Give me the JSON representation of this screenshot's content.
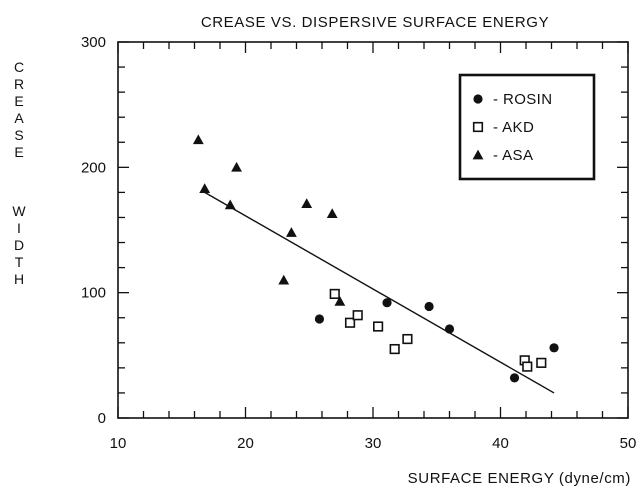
{
  "chart_data": {
    "type": "scatter",
    "title": "CREASE VS. DISPERSIVE SURFACE ENERGY",
    "xlabel": "SURFACE ENERGY (dyne/cm)",
    "ylabel": "CREASE WIDTH",
    "xlim": [
      10,
      50
    ],
    "ylim": [
      0,
      300
    ],
    "x_ticks": [
      "10",
      "20",
      "30",
      "40",
      "50"
    ],
    "y_ticks": [
      "0",
      "100",
      "200",
      "300"
    ],
    "grid": false,
    "legend_position": "top-right",
    "series": [
      {
        "name": "ROSIN",
        "marker": "filled-circle",
        "points": [
          [
            25.8,
            79
          ],
          [
            31.1,
            92
          ],
          [
            34.4,
            89
          ],
          [
            36.0,
            71
          ],
          [
            41.1,
            32
          ],
          [
            44.2,
            56
          ]
        ]
      },
      {
        "name": "AKD",
        "marker": "open-square",
        "points": [
          [
            27.0,
            99
          ],
          [
            28.2,
            76
          ],
          [
            28.8,
            82
          ],
          [
            30.4,
            73
          ],
          [
            31.7,
            55
          ],
          [
            32.7,
            63
          ],
          [
            41.9,
            46
          ],
          [
            42.1,
            41
          ],
          [
            43.2,
            44
          ]
        ]
      },
      {
        "name": "ASA",
        "marker": "filled-triangle",
        "points": [
          [
            16.3,
            222
          ],
          [
            16.8,
            183
          ],
          [
            18.8,
            170
          ],
          [
            19.3,
            200
          ],
          [
            23.0,
            110
          ],
          [
            23.6,
            148
          ],
          [
            24.8,
            171
          ],
          [
            26.8,
            163
          ],
          [
            27.4,
            93
          ]
        ]
      }
    ],
    "trendline": {
      "x": [
        16.8,
        44.2
      ],
      "y": [
        180,
        20
      ]
    }
  },
  "legend_prefix": "-"
}
